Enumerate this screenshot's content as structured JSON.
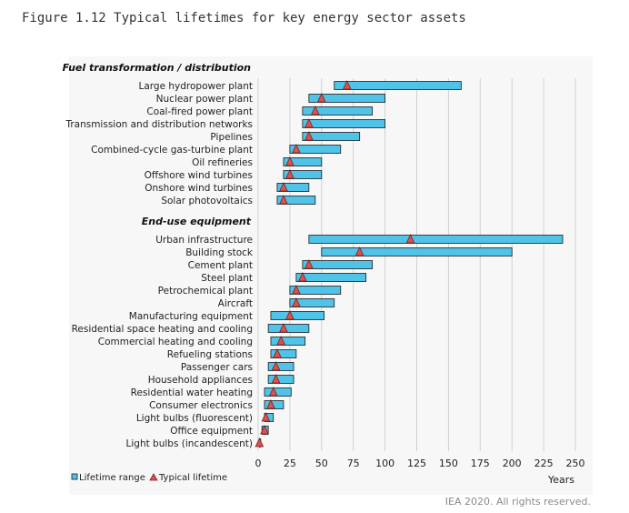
{
  "figure_title": "Figure 1.12 Typical lifetimes for key energy sector assets",
  "footer": "IEA 2020. All rights reserved.",
  "colors": {
    "bar_fill": "#4fc3e8",
    "bar_stroke": "#1c1c1c",
    "marker_fill": "#d9534f",
    "marker_stroke": "#7a1f1f",
    "grid": "#d0d0d0",
    "panel": "#f7f7f7"
  },
  "chart_data": {
    "type": "bar",
    "orientation": "horizontal-range",
    "title": "",
    "xlabel": "Years",
    "xlim": [
      0,
      250
    ],
    "xticks": [
      0,
      25,
      50,
      75,
      100,
      125,
      150,
      175,
      200,
      225,
      250
    ],
    "grid": "vertical",
    "legend_position": "bottom-left",
    "legend": [
      {
        "key": "range",
        "label": "Lifetime range"
      },
      {
        "key": "typical",
        "label": "Typical lifetime"
      }
    ],
    "groups": [
      {
        "name": "Fuel transformation / distribution",
        "items": [
          {
            "label": "Large hydropower plant",
            "min": 60,
            "max": 160,
            "typical": 70
          },
          {
            "label": "Nuclear power plant",
            "min": 40,
            "max": 100,
            "typical": 50
          },
          {
            "label": "Coal-fired power plant",
            "min": 35,
            "max": 90,
            "typical": 45
          },
          {
            "label": "Transmission and distribution networks",
            "min": 35,
            "max": 100,
            "typical": 40
          },
          {
            "label": "Pipelines",
            "min": 35,
            "max": 80,
            "typical": 40
          },
          {
            "label": "Combined-cycle gas-turbine plant",
            "min": 25,
            "max": 65,
            "typical": 30
          },
          {
            "label": "Oil refineries",
            "min": 20,
            "max": 50,
            "typical": 25
          },
          {
            "label": "Offshore wind turbines",
            "min": 20,
            "max": 50,
            "typical": 25
          },
          {
            "label": "Onshore wind turbines",
            "min": 15,
            "max": 40,
            "typical": 20
          },
          {
            "label": "Solar photovoltaics",
            "min": 15,
            "max": 45,
            "typical": 20
          }
        ]
      },
      {
        "name": "End-use equipment",
        "items": [
          {
            "label": "Urban infrastructure",
            "min": 40,
            "max": 240,
            "typical": 120
          },
          {
            "label": "Building stock",
            "min": 50,
            "max": 200,
            "typical": 80
          },
          {
            "label": "Cement plant",
            "min": 35,
            "max": 90,
            "typical": 40
          },
          {
            "label": "Steel plant",
            "min": 30,
            "max": 85,
            "typical": 35
          },
          {
            "label": "Petrochemical plant",
            "min": 25,
            "max": 65,
            "typical": 30
          },
          {
            "label": "Aircraft",
            "min": 25,
            "max": 60,
            "typical": 30
          },
          {
            "label": "Manufacturing equipment",
            "min": 10,
            "max": 52,
            "typical": 25
          },
          {
            "label": "Residential space heating and cooling",
            "min": 8,
            "max": 40,
            "typical": 20
          },
          {
            "label": "Commercial heating and cooling",
            "min": 10,
            "max": 37,
            "typical": 18
          },
          {
            "label": "Refueling stations",
            "min": 10,
            "max": 30,
            "typical": 15
          },
          {
            "label": "Passenger cars",
            "min": 8,
            "max": 28,
            "typical": 14
          },
          {
            "label": "Household appliances",
            "min": 8,
            "max": 28,
            "typical": 14
          },
          {
            "label": "Residential water heating",
            "min": 5,
            "max": 26,
            "typical": 12
          },
          {
            "label": "Consumer electronics",
            "min": 5,
            "max": 20,
            "typical": 10
          },
          {
            "label": "Light bulbs (fluorescent)",
            "min": 5,
            "max": 12,
            "typical": 6
          },
          {
            "label": "Office equipment",
            "min": 3,
            "max": 8,
            "typical": 5
          },
          {
            "label": "Light bulbs (incandescent)",
            "min": 1,
            "max": 2,
            "typical": 1
          }
        ]
      }
    ]
  }
}
